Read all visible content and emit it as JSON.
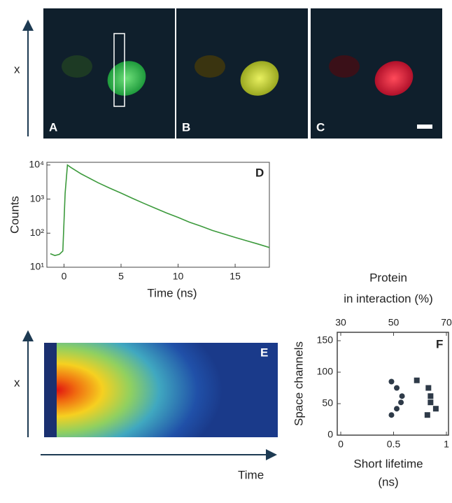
{
  "figure": {
    "images": [
      {
        "label": "A"
      },
      {
        "label": "B"
      },
      {
        "label": "C"
      }
    ],
    "image_axis": "x",
    "kymo_label": "E",
    "kymo_axis": "x",
    "kymo_time": "Time"
  },
  "chart_data": [
    {
      "type": "line",
      "label": "D",
      "ylabel": "Counts",
      "xlabel": "Time (ns)",
      "log_y": true,
      "xlim": [
        -1.5,
        18
      ],
      "ylim": [
        10,
        12000
      ],
      "xticks": [
        0,
        5,
        10,
        15
      ],
      "yticks": [
        {
          "value": 10,
          "label": "10¹"
        },
        {
          "value": 100,
          "label": "10²"
        },
        {
          "value": 1000,
          "label": "10³"
        },
        {
          "value": 10000,
          "label": "10⁴"
        }
      ],
      "x": [
        -1.2,
        -0.8,
        -0.4,
        -0.1,
        0.1,
        0.3,
        0.6,
        1,
        1.5,
        2,
        3,
        4,
        5,
        6,
        7,
        8,
        9,
        10,
        11,
        12,
        13,
        14,
        15,
        16,
        17,
        18
      ],
      "series": [
        {
          "color": "#3c9a3c",
          "values": [
            25,
            22,
            24,
            30,
            1500,
            10000,
            8500,
            7000,
            5500,
            4500,
            3000,
            2100,
            1500,
            1050,
            750,
            540,
            390,
            290,
            210,
            160,
            120,
            95,
            75,
            60,
            48,
            38
          ]
        }
      ]
    },
    {
      "type": "scatter",
      "label": "F",
      "ylabel": "Space channels",
      "xlabel": [
        "Short lifetime",
        "(ns)"
      ],
      "x2label": [
        "Protein",
        "in interaction (%)"
      ],
      "xlim": [
        0,
        1
      ],
      "xticks": [
        0,
        0.5,
        1
      ],
      "x2lim": [
        30,
        70
      ],
      "x2ticks": [
        30,
        50,
        70
      ],
      "ylim": [
        0,
        160
      ],
      "yticks": [
        0,
        50,
        100,
        150
      ],
      "series": [
        {
          "marker": "circle",
          "color": "#2e3a48",
          "x": [
            0.48,
            0.53,
            0.58,
            0.57,
            0.53,
            0.48
          ],
          "values": [
            85,
            75,
            62,
            52,
            42,
            32
          ]
        },
        {
          "marker": "square",
          "color": "#2e3a48",
          "x": [
            0.72,
            0.83,
            0.85,
            0.85,
            0.9,
            0.82
          ],
          "values": [
            87,
            75,
            62,
            52,
            42,
            32
          ]
        }
      ]
    }
  ]
}
